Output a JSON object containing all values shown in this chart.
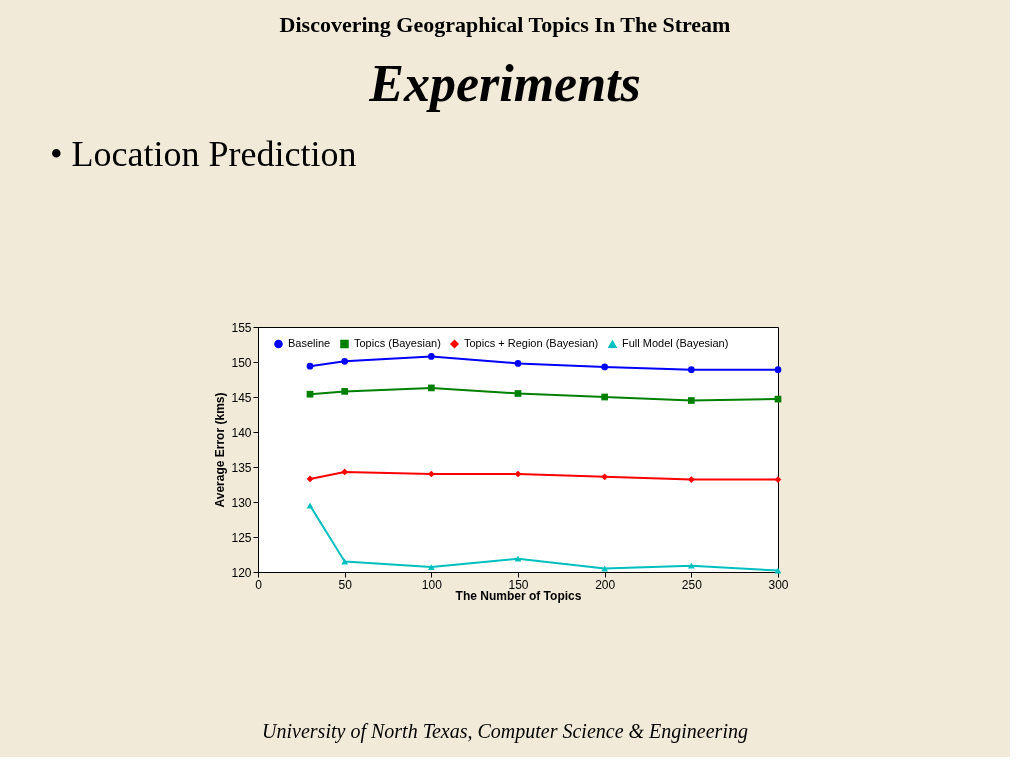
{
  "chart_data": {
    "type": "line",
    "title": "Experiments",
    "subtitle": "• Location Prediction",
    "annotations": [
      "Discovering Geographical Topics In The Stream",
      "University of North Texas, Computer Science & Engineering"
    ],
    "xlabel": "The Number of Topics",
    "ylabel": "Average Error (kms)",
    "x": [
      30,
      50,
      100,
      150,
      200,
      250,
      300
    ],
    "series": [
      {
        "name": "Baseline",
        "color": "#0000ff",
        "marker": "circle",
        "values": [
          149.4,
          150.1,
          150.8,
          149.8,
          149.3,
          148.9,
          148.9
        ]
      },
      {
        "name": "Topics (Bayesian)",
        "color": "#008000",
        "marker": "square",
        "values": [
          145.4,
          145.8,
          146.3,
          145.5,
          145.0,
          144.5,
          144.7
        ]
      },
      {
        "name": "Topics + Region (Bayesian)",
        "color": "#ff0000",
        "marker": "diamond",
        "values": [
          133.3,
          134.3,
          134.0,
          134.0,
          133.6,
          133.2,
          133.2
        ]
      },
      {
        "name": "Full Model (Bayesian)",
        "color": "#00bfbf",
        "marker": "triangle",
        "values": [
          129.5,
          121.5,
          120.7,
          121.9,
          120.5,
          120.9,
          120.2
        ]
      }
    ],
    "xlim": [
      0,
      300
    ],
    "xticks": [
      0,
      50,
      100,
      150,
      200,
      250,
      300
    ],
    "ylim": [
      120,
      155
    ],
    "yticks": [
      120,
      125,
      130,
      135,
      140,
      145,
      150,
      155
    ],
    "grid": false,
    "legend": "top",
    "line_style": "solid"
  }
}
